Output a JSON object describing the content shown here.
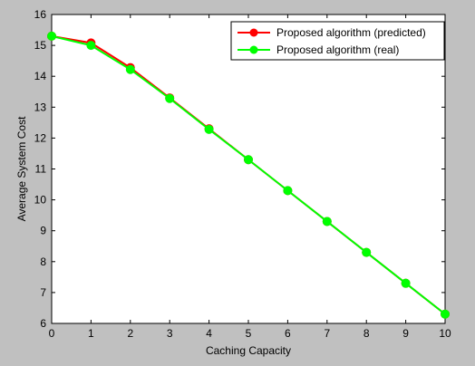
{
  "colors": {
    "figure_background": "#c0c0c0",
    "plot_background": "#ffffff",
    "axis": "#000000",
    "predicted": "#ff0000",
    "real": "#00ff00"
  },
  "chart_data": {
    "type": "line",
    "title": "",
    "xlabel": "Caching Capacity",
    "ylabel": "Average System Cost",
    "xlim": [
      0,
      10
    ],
    "ylim": [
      6,
      16
    ],
    "xticks": [
      0,
      1,
      2,
      3,
      4,
      5,
      6,
      7,
      8,
      9,
      10
    ],
    "yticks": [
      6,
      7,
      8,
      9,
      10,
      11,
      12,
      13,
      14,
      15,
      16
    ],
    "grid": false,
    "legend_position": "top-right",
    "x": [
      0,
      1,
      2,
      3,
      4,
      5,
      6,
      7,
      8,
      9,
      10
    ],
    "series": [
      {
        "name": "Proposed algorithm (predicted)",
        "color": "#ff0000",
        "marker": "circle",
        "values": [
          15.3,
          15.08,
          14.28,
          13.3,
          12.3,
          11.3,
          10.3,
          9.3,
          8.3,
          7.3,
          6.3
        ]
      },
      {
        "name": "Proposed algorithm (real)",
        "color": "#00ff00",
        "marker": "circle",
        "values": [
          15.3,
          15.0,
          14.22,
          13.28,
          12.28,
          11.3,
          10.3,
          9.3,
          8.3,
          7.3,
          6.3
        ]
      }
    ]
  }
}
